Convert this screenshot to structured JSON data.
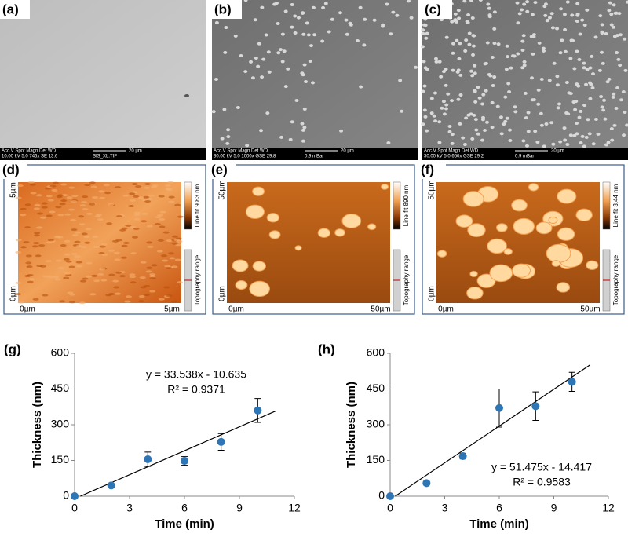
{
  "panels": {
    "sem": [
      {
        "label": "(a)",
        "info_header": "Acc.V  Spot Magn  Det  WD",
        "info": "10.00 kV 5.0  746x  SE  13.6",
        "scale": "20 µm",
        "note": "SIS_XL.TIF"
      },
      {
        "label": "(b)",
        "info_header": "Acc.V  Spot Magn  Det  WD",
        "info": "30.00 kV 5.0  1000x GSE 29.8",
        "scale": "20 µm",
        "note": "0.9 mBar"
      },
      {
        "label": "(c)",
        "info_header": "Acc.V  Spot Magn  Det  WD",
        "info": "30.00 kV 5.0  650x  GSE 29.2",
        "scale": "20 µm",
        "note": "0.9 mBar"
      }
    ],
    "afm": [
      {
        "label": "(d)",
        "y_top": "5µm",
        "y_bottom": "0µm",
        "x_left": "0µm",
        "x_right": "5µm",
        "line_fit": "Line fit 9.83 nm",
        "range": "Topography range"
      },
      {
        "label": "(e)",
        "y_top": "50µm",
        "y_bottom": "0µm",
        "x_left": "0µm",
        "x_right": "50µm",
        "line_fit": "Line fit 890 nm",
        "range": "Topography range"
      },
      {
        "label": "(f)",
        "y_top": "50µm",
        "y_bottom": "0µm",
        "x_left": "0µm",
        "x_right": "50µm",
        "line_fit": "Line fit 3.44 nm",
        "range": "Topography range"
      }
    ]
  },
  "chart_data": [
    {
      "type": "scatter",
      "label": "(g)",
      "xlabel": "Time (min)",
      "ylabel": "Thickness (nm)",
      "x": [
        0,
        2,
        4,
        6,
        8,
        10
      ],
      "series": [
        {
          "color": "#2e75b6",
          "values": [
            0,
            45,
            155,
            148,
            228,
            360
          ],
          "errors": [
            0,
            8,
            30,
            18,
            35,
            50
          ]
        }
      ],
      "fit": {
        "equation": "y = 33.538x - 10.635",
        "r2": "R² = 0.9371",
        "slope": 33.538,
        "intercept": -10.635,
        "x_end": 11
      },
      "xlim": [
        0,
        12
      ],
      "xticks": [
        0,
        3,
        6,
        9,
        12
      ],
      "ylim": [
        0,
        600
      ],
      "yticks": [
        0,
        150,
        300,
        450,
        600
      ]
    },
    {
      "type": "scatter",
      "label": "(h)",
      "xlabel": "Time (min)",
      "ylabel": "Thickness (nm)",
      "x": [
        0,
        2,
        4,
        6,
        8,
        10
      ],
      "series": [
        {
          "color": "#2e75b6",
          "values": [
            0,
            55,
            168,
            370,
            378,
            480
          ],
          "errors": [
            0,
            8,
            12,
            80,
            60,
            40
          ]
        }
      ],
      "fit": {
        "equation": "y = 51.475x - 14.417",
        "r2": "R² = 0.9583",
        "slope": 51.475,
        "intercept": -14.417,
        "x_end": 11
      },
      "xlim": [
        0,
        12
      ],
      "xticks": [
        0,
        3,
        6,
        9,
        12
      ],
      "ylim": [
        0,
        600
      ],
      "yticks": [
        0,
        150,
        300,
        450,
        600
      ]
    }
  ]
}
